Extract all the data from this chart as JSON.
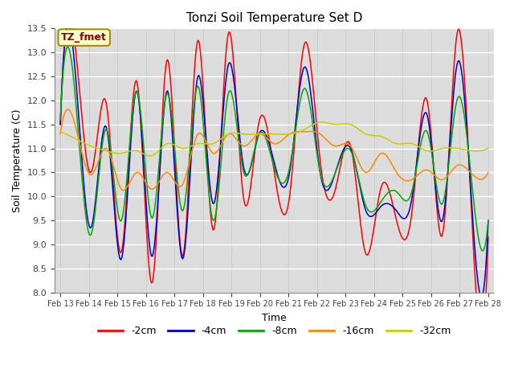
{
  "title": "Tonzi Soil Temperature Set D",
  "xlabel": "Time",
  "ylabel": "Soil Temperature (C)",
  "ylim": [
    8.0,
    13.5
  ],
  "label_annotation": "TZ_fmet",
  "background_color": "#dcdcdc",
  "fig_bg_color": "#ffffff",
  "legend_labels": [
    "-2cm",
    "-4cm",
    "-8cm",
    "-16cm",
    "-32cm"
  ],
  "line_colors": [
    "#ff0000",
    "#0000cc",
    "#00aa00",
    "#ff8800",
    "#cccc00"
  ],
  "x_tick_labels": [
    "Feb 13",
    "Feb 14",
    "Feb 15",
    "Feb 16",
    "Feb 17",
    "Feb 18",
    "Feb 19",
    "Feb 20",
    "Feb 21",
    "Feb 22",
    "Feb 23",
    "Feb 24",
    "Feb 25",
    "Feb 26",
    "Feb 27",
    "Feb 28"
  ],
  "yticks": [
    8.0,
    8.5,
    9.0,
    9.5,
    10.0,
    10.5,
    11.0,
    11.5,
    12.0,
    12.5,
    13.0,
    13.5
  ],
  "n_points": 480,
  "d2cm_ctrl": [
    11.5,
    13.05,
    10.5,
    11.95,
    8.85,
    12.4,
    8.2,
    12.85,
    8.75,
    13.25,
    9.3,
    13.4,
    9.95,
    11.55,
    10.5,
    10.0,
    13.2,
    10.75,
    10.15,
    11.05,
    8.8,
    10.2,
    9.5,
    9.65,
    12.0,
    9.2,
    13.45,
    9.1,
    9.15
  ],
  "d4cm_ctrl": [
    11.5,
    12.5,
    9.35,
    11.45,
    8.7,
    12.2,
    8.75,
    12.2,
    8.7,
    12.5,
    9.85,
    12.75,
    10.6,
    11.3,
    10.7,
    10.5,
    12.7,
    10.5,
    10.5,
    11.0,
    9.7,
    9.8,
    9.7,
    9.95,
    11.7,
    9.5,
    12.8,
    9.45,
    9.5
  ],
  "d8cm_ctrl": [
    11.6,
    12.0,
    9.2,
    11.4,
    9.5,
    12.2,
    9.55,
    12.15,
    9.7,
    12.3,
    9.5,
    12.15,
    10.5,
    11.3,
    10.6,
    10.6,
    12.25,
    10.5,
    10.5,
    10.95,
    9.8,
    9.9,
    10.1,
    10.1,
    11.35,
    9.85,
    12.05,
    10.05,
    9.5
  ],
  "d16cm_ctrl": [
    11.3,
    11.45,
    10.45,
    11.0,
    10.15,
    10.5,
    10.15,
    10.5,
    10.25,
    11.3,
    10.9,
    11.3,
    11.05,
    11.3,
    11.1,
    11.3,
    11.35,
    11.3,
    11.05,
    11.05,
    10.5,
    10.9,
    10.5,
    10.35,
    10.55,
    10.35,
    10.65,
    10.45,
    10.5
  ],
  "d32cm_ctrl": [
    11.35,
    11.2,
    11.05,
    10.95,
    10.9,
    10.95,
    10.85,
    11.1,
    11.0,
    11.1,
    11.1,
    11.3,
    11.3,
    11.3,
    11.3,
    11.3,
    11.4,
    11.55,
    11.5,
    11.5,
    11.3,
    11.25,
    11.1,
    11.1,
    10.95,
    11.0,
    11.0,
    10.95,
    11.0
  ]
}
